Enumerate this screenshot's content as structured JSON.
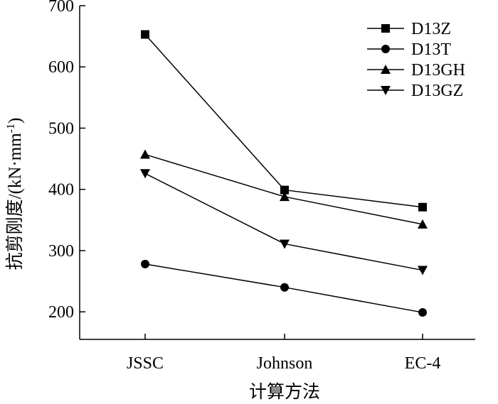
{
  "chart_data": {
    "type": "line",
    "title": "",
    "xlabel": "计算方法",
    "ylabel": "抗剪刚度/(kN·mm",
    "ylabel_superscript": "-1",
    "ylabel_close": ")",
    "categories": [
      "JSSC",
      "Johnson",
      "EC-4"
    ],
    "ylim": [
      155,
      700
    ],
    "yticks": [
      200,
      300,
      400,
      500,
      600,
      700
    ],
    "legend_position": "top-right",
    "grid": false,
    "series": [
      {
        "name": "D13Z",
        "marker": "square",
        "values": [
          653,
          399,
          371
        ]
      },
      {
        "name": "D13T",
        "marker": "circle",
        "values": [
          278,
          240,
          199
        ]
      },
      {
        "name": "D13GH",
        "marker": "triangle-up",
        "values": [
          457,
          388,
          343
        ]
      },
      {
        "name": "D13GZ",
        "marker": "triangle-down",
        "values": [
          426,
          311,
          268
        ]
      }
    ]
  }
}
